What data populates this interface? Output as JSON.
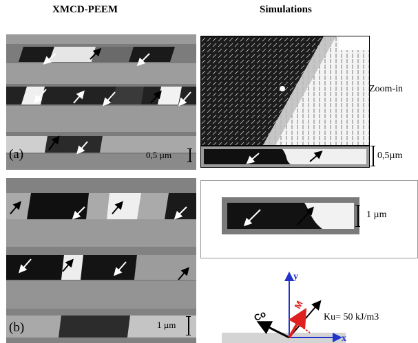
{
  "headers": {
    "left": "XMCD-PEEM",
    "right": "Simulations"
  },
  "panel_a": {
    "label": "(a)",
    "scale": "0,5 µm"
  },
  "panel_b": {
    "label": "(b)",
    "scale": "1 µm"
  },
  "simulation_top": {
    "side_label": "Zoom-in",
    "scale": "0,5µm"
  },
  "simulation_middle": {
    "scale": "1 µm"
  },
  "axes_diagram": {
    "y_label": "y",
    "x_label": "x",
    "co_label": "Co",
    "m_label": "M",
    "ku_label": "Ku= 50 kJ/m3"
  }
}
